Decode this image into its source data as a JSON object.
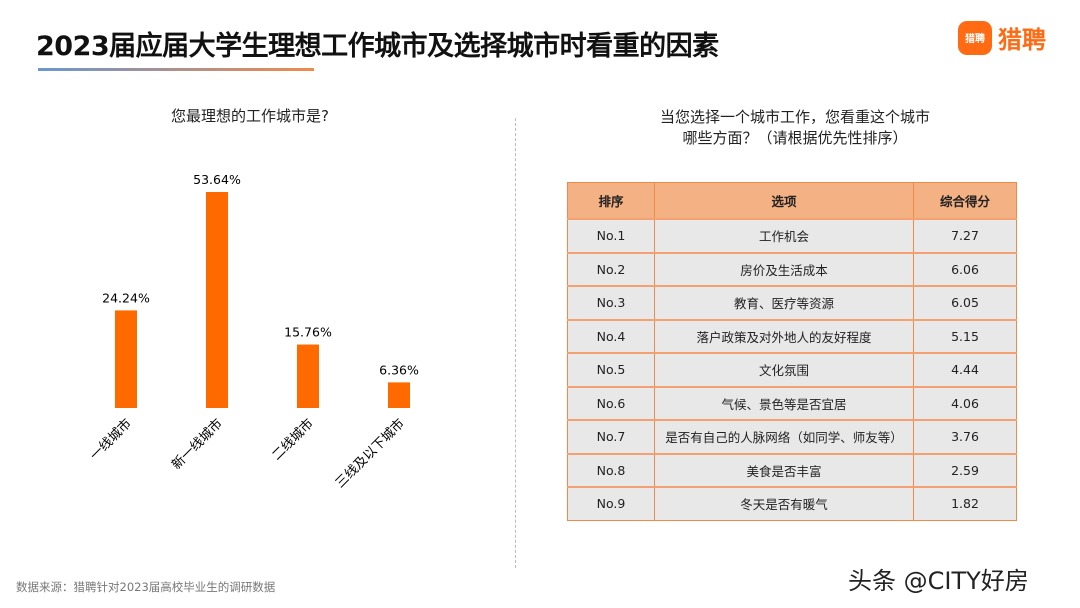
{
  "header": {
    "title": "2023届应届大学生理想工作城市及选择城市时看重的因素",
    "logo_icon_text": "猎聘",
    "logo_text": "猎聘"
  },
  "chart_data": {
    "type": "bar",
    "title": "您最理想的工作城市是?",
    "categories": [
      "一线城市",
      "新一线城市",
      "二线城市",
      "三线及以下城市"
    ],
    "values": [
      24.24,
      53.64,
      15.76,
      6.36
    ],
    "value_labels": [
      "24.24%",
      "53.64%",
      "15.76%",
      "6.36%"
    ],
    "color": "#ff6a00",
    "ylim": [
      0,
      60
    ],
    "grid": false
  },
  "table": {
    "question_line1": "当您选择一个城市工作，您看重这个城市",
    "question_line2": "哪些方面？（请根据优先性排序）",
    "headers": [
      "排序",
      "选项",
      "综合得分"
    ],
    "rows": [
      [
        "No.1",
        "工作机会",
        "7.27"
      ],
      [
        "No.2",
        "房价及生活成本",
        "6.06"
      ],
      [
        "No.3",
        "教育、医疗等资源",
        "6.05"
      ],
      [
        "No.4",
        "落户政策及对外地人的友好程度",
        "5.15"
      ],
      [
        "No.5",
        "文化氛围",
        "4.44"
      ],
      [
        "No.6",
        "气候、景色等是否宜居",
        "4.06"
      ],
      [
        "No.7",
        "是否有自己的人脉网络（如同学、师友等）",
        "3.76"
      ],
      [
        "No.8",
        "美食是否丰富",
        "2.59"
      ],
      [
        "No.9",
        "冬天是否有暖气",
        "1.82"
      ]
    ]
  },
  "footer": {
    "source": "数据来源：猎聘针对2023届高校毕业生的调研数据",
    "watermark": "头条 @CITY好房"
  }
}
